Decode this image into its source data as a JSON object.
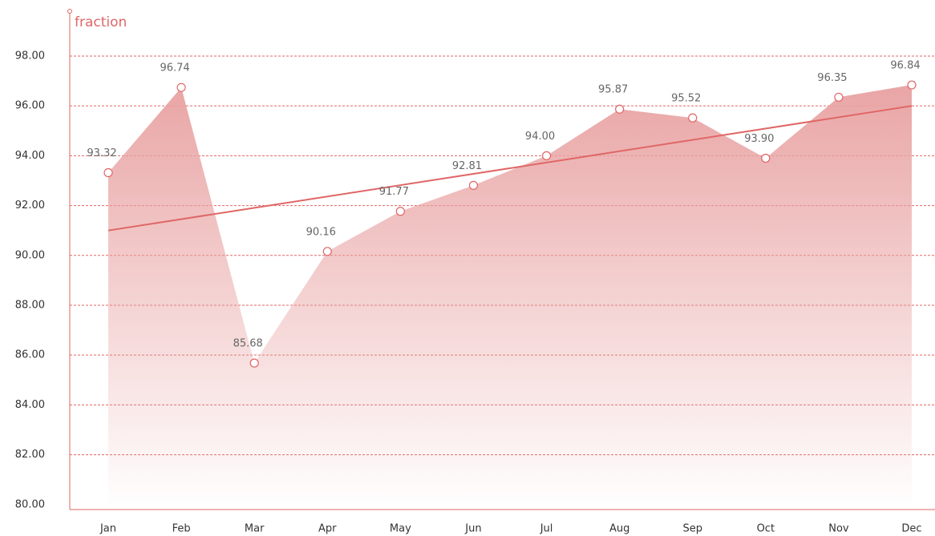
{
  "chart_data": {
    "type": "area",
    "y_axis_label": "fraction",
    "categories": [
      "Jan",
      "Feb",
      "Mar",
      "Apr",
      "May",
      "Jun",
      "Jul",
      "Aug",
      "Sep",
      "Oct",
      "Nov",
      "Dec"
    ],
    "values": [
      93.32,
      96.74,
      85.68,
      90.16,
      91.77,
      92.81,
      94.0,
      95.87,
      95.52,
      93.9,
      96.35,
      96.84
    ],
    "value_labels": [
      "93.32",
      "96.74",
      "85.68",
      "90.16",
      "91.77",
      "92.81",
      "94.00",
      "95.87",
      "95.52",
      "93.90",
      "96.35",
      "96.84"
    ],
    "trend_values": [
      91.0,
      96.0
    ],
    "color": "#e06666",
    "ylim": [
      79.8,
      99.8
    ],
    "yticks": [
      {
        "value": 80,
        "label": "80.00"
      },
      {
        "value": 82,
        "label": "82.00"
      },
      {
        "value": 84,
        "label": "84.00"
      },
      {
        "value": 86,
        "label": "86.00"
      },
      {
        "value": 88,
        "label": "88.00"
      },
      {
        "value": 90,
        "label": "90.00"
      },
      {
        "value": 92,
        "label": "92.00"
      },
      {
        "value": 94,
        "label": "94.00"
      },
      {
        "value": 96,
        "label": "96.00"
      },
      {
        "value": 98,
        "label": "98.00"
      }
    ],
    "grid": true
  }
}
